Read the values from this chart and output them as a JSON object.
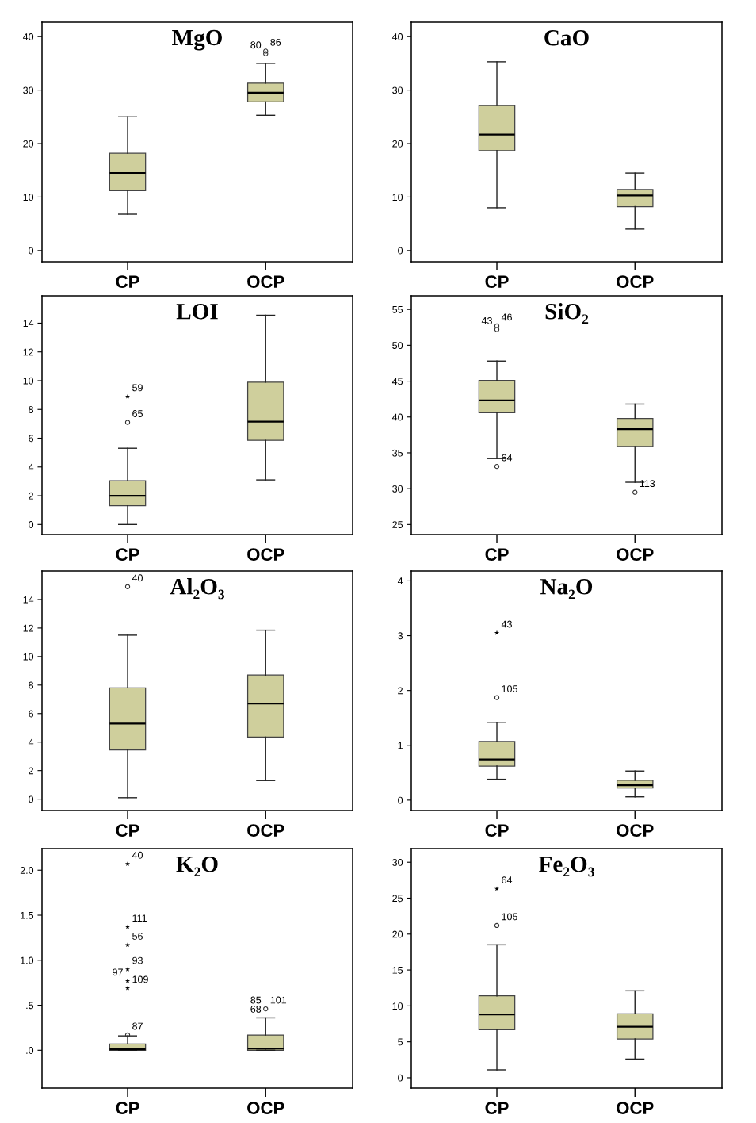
{
  "chart_data": [
    {
      "type": "box",
      "title": "MgO",
      "categories": [
        "CP",
        "OCP"
      ],
      "ylim": [
        -2.1,
        42.7
      ],
      "yticks": [
        0,
        10,
        20,
        30,
        40
      ],
      "grid": false,
      "legend": false,
      "series": [
        {
          "color": "#cfcf9c",
          "boxes": [
            {
              "low": 6.8,
              "q1": 11.2,
              "median": 14.5,
              "q3": 18.2,
              "high": 25
            },
            {
              "low": 25.3,
              "q1": 27.8,
              "median": 29.5,
              "q3": 31.3,
              "high": 35
            }
          ]
        },
        {
          "type": "scatter",
          "marker": "circle",
          "color": "#333333",
          "x": [
            "OCP",
            "OCP"
          ],
          "values": [
            37.3,
            36.8
          ]
        }
      ],
      "annotations": [
        {
          "text": "86",
          "x": "OCP",
          "y": 37.3
        },
        {
          "text": "80",
          "x": "OCP",
          "y": 36.8
        }
      ]
    },
    {
      "type": "box",
      "title": "CaO",
      "categories": [
        "CP",
        "OCP"
      ],
      "ylim": [
        -2.1,
        42.7
      ],
      "yticks": [
        0,
        10,
        20,
        30,
        40
      ],
      "grid": false,
      "legend": false,
      "series": [
        {
          "color": "#cfcf9c",
          "boxes": [
            {
              "low": 8,
              "q1": 18.7,
              "median": 21.7,
              "q3": 27.1,
              "high": 35.3
            },
            {
              "low": 4,
              "q1": 8.2,
              "median": 10.3,
              "q3": 11.4,
              "high": 14.5
            }
          ]
        }
      ]
    },
    {
      "type": "box",
      "title": "LOI",
      "categories": [
        "CP",
        "OCP"
      ],
      "ylim": [
        -0.7,
        15.9
      ],
      "yticks": [
        0,
        2,
        4,
        6,
        8,
        10,
        12,
        14
      ],
      "grid": false,
      "legend": false,
      "series": [
        {
          "color": "#cfcf9c",
          "boxes": [
            {
              "low": 0,
              "q1": 1.3,
              "median": 2,
              "q3": 3.05,
              "high": 5.3
            },
            {
              "low": 3.1,
              "q1": 5.85,
              "median": 7.15,
              "q3": 9.9,
              "high": 14.55
            }
          ]
        },
        {
          "type": "scatter",
          "marker": "circle",
          "color": "#333333",
          "x": [
            "CP"
          ],
          "values": [
            7.1
          ]
        },
        {
          "type": "scatter",
          "marker": "star",
          "color": "#000000",
          "x": [
            "CP"
          ],
          "values": [
            8.9
          ]
        }
      ],
      "annotations": [
        {
          "text": "59",
          "x": "CP",
          "y": 8.9
        },
        {
          "text": "65",
          "x": "CP",
          "y": 7.1
        }
      ]
    },
    {
      "type": "box",
      "title": "SiO₂",
      "categories": [
        "CP",
        "OCP"
      ],
      "ylim": [
        23.6,
        56.9
      ],
      "yticks": [
        25,
        30,
        35,
        40,
        45,
        50,
        55
      ],
      "grid": false,
      "legend": false,
      "series": [
        {
          "color": "#cfcf9c",
          "boxes": [
            {
              "low": 34.2,
              "q1": 40.6,
              "median": 42.3,
              "q3": 45.1,
              "high": 47.8
            },
            {
              "low": 30.9,
              "q1": 35.9,
              "median": 38.3,
              "q3": 39.8,
              "high": 41.8
            }
          ]
        },
        {
          "type": "scatter",
          "marker": "circle",
          "color": "#333333",
          "x": [
            "CP",
            "CP",
            "CP",
            "OCP"
          ],
          "values": [
            52.7,
            52.2,
            33.1,
            29.5
          ]
        }
      ],
      "annotations": [
        {
          "text": "46",
          "x": "CP",
          "y": 52.7
        },
        {
          "text": "43",
          "x": "CP",
          "y": 52.2
        },
        {
          "text": "64",
          "x": "CP",
          "y": 33.1
        },
        {
          "text": "113",
          "x": "OCP",
          "y": 29.5
        }
      ]
    },
    {
      "type": "box",
      "title": "Al₂O₃",
      "categories": [
        "CP",
        "OCP"
      ],
      "ylim": [
        -0.8,
        16
      ],
      "yticks": [
        0,
        2,
        4,
        6,
        8,
        10,
        12,
        14
      ],
      "grid": false,
      "legend": false,
      "series": [
        {
          "color": "#cfcf9c",
          "boxes": [
            {
              "low": 0.1,
              "q1": 3.45,
              "median": 5.3,
              "q3": 7.8,
              "high": 11.5
            },
            {
              "low": 1.3,
              "q1": 4.35,
              "median": 6.7,
              "q3": 8.7,
              "high": 11.85
            }
          ]
        },
        {
          "type": "scatter",
          "marker": "circle",
          "color": "#333333",
          "x": [
            "CP"
          ],
          "values": [
            14.9
          ]
        }
      ],
      "annotations": [
        {
          "text": "40",
          "x": "CP",
          "y": 14.9
        }
      ]
    },
    {
      "type": "box",
      "title": "Na₂O",
      "categories": [
        "CP",
        "OCP"
      ],
      "ylim": [
        -0.19,
        4.18
      ],
      "yticks": [
        0,
        1,
        2,
        3,
        4
      ],
      "grid": false,
      "legend": false,
      "series": [
        {
          "color": "#cfcf9c",
          "boxes": [
            {
              "low": 0.38,
              "q1": 0.62,
              "median": 0.74,
              "q3": 1.07,
              "high": 1.42
            },
            {
              "low": 0.06,
              "q1": 0.22,
              "median": 0.27,
              "q3": 0.36,
              "high": 0.53
            }
          ]
        },
        {
          "type": "scatter",
          "marker": "circle",
          "color": "#333333",
          "x": [
            "CP"
          ],
          "values": [
            1.87
          ]
        },
        {
          "type": "scatter",
          "marker": "star",
          "color": "#000000",
          "x": [
            "CP"
          ],
          "values": [
            3.05
          ]
        }
      ],
      "annotations": [
        {
          "text": "43",
          "x": "CP",
          "y": 3.05
        },
        {
          "text": "105",
          "x": "CP",
          "y": 1.87
        }
      ]
    },
    {
      "type": "box",
      "title": "K₂O",
      "categories": [
        "CP",
        "OCP"
      ],
      "ylim": [
        -0.42,
        2.24
      ],
      "yticks": [
        {
          "value": 0,
          "label": ".0"
        },
        {
          "value": 0.5,
          "label": ".5"
        },
        {
          "value": 1,
          "label": "1.0"
        },
        {
          "value": 1.5,
          "label": "1.5"
        },
        {
          "value": 2,
          "label": "2.0"
        }
      ],
      "grid": false,
      "legend": false,
      "series": [
        {
          "color": "#cfcf9c",
          "boxes": [
            {
              "low": 0,
              "q1": 0,
              "median": 0.01,
              "q3": 0.07,
              "high": 0.16
            },
            {
              "low": 0,
              "q1": 0,
              "median": 0.02,
              "q3": 0.17,
              "high": 0.36
            }
          ]
        },
        {
          "type": "scatter",
          "marker": "circle",
          "color": "#333333",
          "x": [
            "CP",
            "OCP"
          ],
          "values": [
            0.17,
            0.46
          ]
        },
        {
          "type": "scatter",
          "marker": "star",
          "color": "#000000",
          "x": [
            "CP",
            "CP",
            "CP",
            "CP",
            "CP",
            "CP"
          ],
          "values": [
            2.07,
            1.37,
            1.17,
            0.9,
            0.77,
            0.69
          ]
        }
      ],
      "annotations": [
        {
          "text": "40",
          "x": "CP",
          "y": 2.07
        },
        {
          "text": "111",
          "x": "CP",
          "y": 1.37
        },
        {
          "text": "56",
          "x": "CP",
          "y": 1.17
        },
        {
          "text": "93",
          "x": "CP",
          "y": 0.9
        },
        {
          "text": "109",
          "x": "CP",
          "y": 0.69
        },
        {
          "text": "97",
          "x": "CP",
          "y": 0.77
        },
        {
          "text": "87",
          "x": "CP",
          "y": 0.17
        },
        {
          "text": "85",
          "x": "OCP",
          "y": 0.46
        },
        {
          "text": "101",
          "x": "OCP",
          "y": 0.46
        },
        {
          "text": "68",
          "x": "OCP",
          "y": 0.36
        }
      ]
    },
    {
      "type": "box",
      "title": "Fe₂O₃",
      "categories": [
        "CP",
        "OCP"
      ],
      "ylim": [
        -1.44,
        31.9
      ],
      "yticks": [
        0,
        5,
        10,
        15,
        20,
        25,
        30
      ],
      "grid": false,
      "legend": false,
      "series": [
        {
          "color": "#cfcf9c",
          "boxes": [
            {
              "low": 1.1,
              "q1": 6.7,
              "median": 8.8,
              "q3": 11.4,
              "high": 18.5
            },
            {
              "low": 2.6,
              "q1": 5.4,
              "median": 7.1,
              "q3": 8.9,
              "high": 12.1
            }
          ]
        },
        {
          "type": "scatter",
          "marker": "circle",
          "color": "#333333",
          "x": [
            "CP"
          ],
          "values": [
            21.2
          ]
        },
        {
          "type": "scatter",
          "marker": "star",
          "color": "#000000",
          "x": [
            "CP"
          ],
          "values": [
            26.3
          ]
        }
      ],
      "annotations": [
        {
          "text": "64",
          "x": "CP",
          "y": 26.3
        },
        {
          "text": "105",
          "x": "CP",
          "y": 21.2
        }
      ]
    }
  ]
}
